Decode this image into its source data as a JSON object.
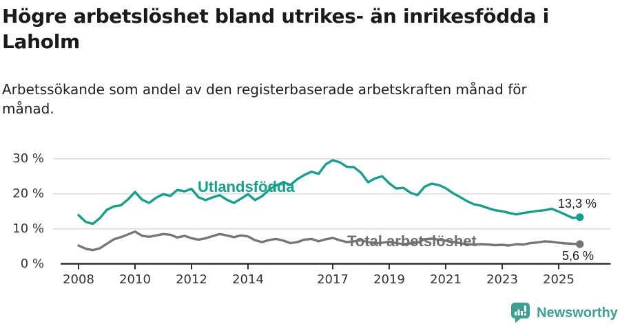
{
  "page": {
    "title": "Högre arbetslöshet bland utrikes- än inrikesfödda i\nLaholm",
    "subtitle": "Arbetssökande som andel av den registerbaserade arbetskraften månad för\nmånad."
  },
  "footer": {
    "brand": "Newsworthy",
    "brand_color": "#3da192",
    "logo_icon": "speech-bubble-with-bar-chart"
  },
  "chart_data": {
    "type": "line",
    "title": "",
    "xlabel": "",
    "ylabel": "",
    "grid": true,
    "ylim": [
      0,
      33
    ],
    "xlim": [
      2007.4,
      2026.4
    ],
    "y_axis": {
      "ticks": [
        {
          "value": 0,
          "label": "0 %"
        },
        {
          "value": 10,
          "label": "10 %"
        },
        {
          "value": 20,
          "label": "20 %"
        },
        {
          "value": 30,
          "label": "30 %"
        }
      ]
    },
    "x_axis": {
      "ticks": [
        {
          "value": 2008,
          "label": "2008"
        },
        {
          "value": 2010,
          "label": "2010"
        },
        {
          "value": 2012,
          "label": "2012"
        },
        {
          "value": 2014,
          "label": "2014"
        },
        {
          "value": 2017,
          "label": "2017"
        },
        {
          "value": 2019,
          "label": "2019"
        },
        {
          "value": 2021,
          "label": "2021"
        },
        {
          "value": 2023,
          "label": "2023"
        },
        {
          "value": 2025,
          "label": "2025"
        }
      ]
    },
    "x": [
      2008.0,
      2008.25,
      2008.5,
      2008.75,
      2009.0,
      2009.25,
      2009.5,
      2009.75,
      2010.0,
      2010.25,
      2010.5,
      2010.75,
      2011.0,
      2011.25,
      2011.5,
      2011.75,
      2012.0,
      2012.25,
      2012.5,
      2012.75,
      2013.0,
      2013.25,
      2013.5,
      2013.75,
      2014.0,
      2014.25,
      2014.5,
      2014.75,
      2015.0,
      2015.25,
      2015.5,
      2015.75,
      2016.0,
      2016.25,
      2016.5,
      2016.75,
      2017.0,
      2017.25,
      2017.5,
      2017.75,
      2018.0,
      2018.25,
      2018.5,
      2018.75,
      2019.0,
      2019.25,
      2019.5,
      2019.75,
      2020.0,
      2020.25,
      2020.5,
      2020.75,
      2021.0,
      2021.25,
      2021.5,
      2021.75,
      2022.0,
      2022.25,
      2022.5,
      2022.75,
      2023.0,
      2023.25,
      2023.5,
      2023.75,
      2024.0,
      2024.25,
      2024.5,
      2024.75,
      2025.0,
      2025.25,
      2025.5,
      2025.75
    ],
    "series": [
      {
        "name": "Utlandsfödda",
        "color": "#13a08d",
        "end_label": "13,3 %",
        "end_value": 13.3,
        "values": [
          13.9,
          12.0,
          11.4,
          13.0,
          15.4,
          16.4,
          16.7,
          18.4,
          20.5,
          18.3,
          17.4,
          18.9,
          19.9,
          19.4,
          21.1,
          20.7,
          21.4,
          19.0,
          18.2,
          19.0,
          19.6,
          18.3,
          17.4,
          18.6,
          19.9,
          18.2,
          19.3,
          21.2,
          22.4,
          23.3,
          22.5,
          24.2,
          25.4,
          26.3,
          25.7,
          28.4,
          29.6,
          29.0,
          27.7,
          27.6,
          26.0,
          23.3,
          24.4,
          25.0,
          23.0,
          21.5,
          21.7,
          20.3,
          19.6,
          22.0,
          22.9,
          22.5,
          21.6,
          20.2,
          19.1,
          17.9,
          17.0,
          16.6,
          15.9,
          15.3,
          15.0,
          14.5,
          14.1,
          14.5,
          14.8,
          15.1,
          15.3,
          15.7,
          14.9,
          14.0,
          13.1,
          13.3
        ]
      },
      {
        "name": "Total arbetslöshet",
        "color": "#767676",
        "end_label": "5,6 %",
        "end_value": 5.6,
        "values": [
          5.2,
          4.3,
          3.9,
          4.4,
          5.7,
          7.0,
          7.6,
          8.4,
          9.2,
          8.0,
          7.7,
          8.1,
          8.5,
          8.3,
          7.5,
          8.0,
          7.3,
          6.9,
          7.3,
          7.9,
          8.5,
          8.1,
          7.6,
          8.1,
          7.8,
          6.7,
          6.2,
          6.8,
          7.1,
          6.6,
          5.9,
          6.2,
          6.9,
          7.1,
          6.4,
          7.0,
          7.4,
          6.7,
          6.2,
          6.4,
          6.7,
          6.2,
          5.8,
          6.0,
          6.3,
          5.9,
          5.6,
          5.8,
          6.0,
          7.0,
          7.2,
          6.9,
          6.6,
          6.3,
          5.9,
          5.6,
          5.5,
          5.6,
          5.5,
          5.3,
          5.4,
          5.2,
          5.6,
          5.5,
          5.9,
          6.1,
          6.4,
          6.3,
          6.0,
          5.8,
          5.7,
          5.6
        ]
      }
    ],
    "style": {
      "grid_color": "#d9d9d9",
      "axis_color": "#2f2f2f",
      "tick_text_color": "#333333"
    }
  }
}
